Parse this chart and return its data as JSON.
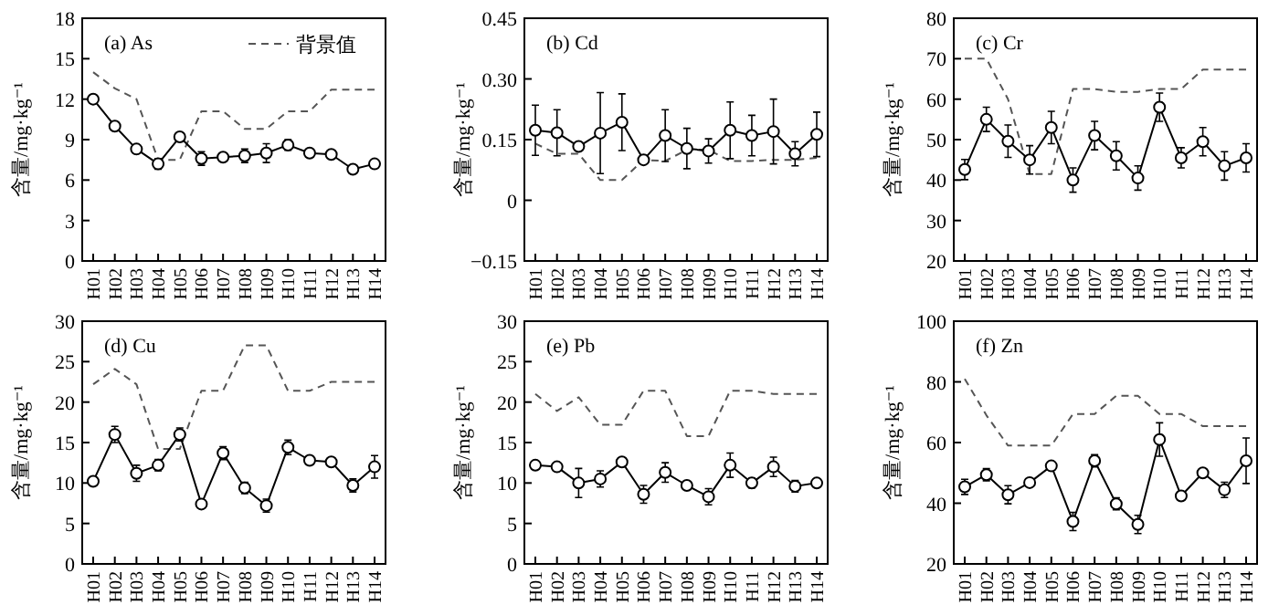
{
  "chart_data": [
    {
      "type": "line",
      "title": "(a) As",
      "ylabel": "含量/mg·kg⁻¹",
      "legend": "top right",
      "categories": [
        "H01",
        "H02",
        "H03",
        "H04",
        "H05",
        "H06",
        "H07",
        "H08",
        "H09",
        "H10",
        "H11",
        "H12",
        "H13",
        "H14"
      ],
      "ylim": [
        0,
        18
      ],
      "yticks": [
        0,
        3,
        6,
        9,
        12,
        15,
        18
      ],
      "series": [
        {
          "name": "背景值",
          "color": "#555555",
          "line_style": "dashed",
          "marker": "none",
          "values": [
            14,
            12.8,
            12,
            7.5,
            7.5,
            11.1,
            11.1,
            9.8,
            9.8,
            11.1,
            11.1,
            12.7,
            12.7,
            12.7
          ]
        },
        {
          "color": "#000000",
          "line_style": "solid",
          "marker": "circle",
          "values": [
            12,
            10,
            8.3,
            7.2,
            9.2,
            7.6,
            7.7,
            7.8,
            8,
            8.6,
            8,
            7.9,
            6.8,
            7.2
          ],
          "errors": [
            null,
            null,
            null,
            0.4,
            null,
            0.5,
            null,
            0.5,
            0.7,
            0.4,
            null,
            null,
            null,
            null
          ]
        }
      ]
    },
    {
      "type": "line",
      "title": "(b) Cd",
      "ylabel": "含量/mg·kg⁻¹",
      "categories": [
        "H01",
        "H02",
        "H03",
        "H04",
        "H05",
        "H06",
        "H07",
        "H08",
        "H09",
        "H10",
        "H11",
        "H12",
        "H13",
        "H14"
      ],
      "ylim": [
        -0.15,
        0.45
      ],
      "yticks": [
        {
          "value": -0.15,
          "label": "−0.15"
        },
        0,
        0.15,
        {
          "value": 0.3,
          "label": "0.30"
        },
        0.45
      ],
      "series": [
        {
          "color": "#555555",
          "line_style": "dashed",
          "marker": "none",
          "values": [
            0.14,
            0.115,
            0.115,
            0.05,
            0.05,
            0.1,
            0.097,
            0.125,
            0.125,
            0.097,
            0.097,
            0.1,
            0.1,
            0.105
          ]
        },
        {
          "color": "#000000",
          "line_style": "solid",
          "marker": "circle",
          "values": [
            0.173,
            0.167,
            0.133,
            0.166,
            0.193,
            0.1,
            0.16,
            0.128,
            0.122,
            0.173,
            0.16,
            0.17,
            0.115,
            0.163
          ],
          "errors": [
            0.062,
            0.057,
            0.005,
            0.1,
            0.07,
            0.005,
            0.064,
            0.05,
            0.03,
            0.07,
            0.05,
            0.08,
            0.03,
            0.055
          ]
        }
      ]
    },
    {
      "type": "line",
      "title": "(c) Cr",
      "ylabel": "含量/mg·kg⁻¹",
      "categories": [
        "H01",
        "H02",
        "H03",
        "H04",
        "H05",
        "H06",
        "H07",
        "H08",
        "H09",
        "H10",
        "H11",
        "H12",
        "H13",
        "H14"
      ],
      "ylim": [
        20,
        80
      ],
      "yticks": [
        20,
        30,
        40,
        50,
        60,
        70,
        80
      ],
      "series": [
        {
          "color": "#555555",
          "line_style": "dashed",
          "marker": "none",
          "values": [
            70,
            70,
            60,
            41.5,
            41.5,
            62.5,
            62.5,
            61.8,
            61.8,
            62.5,
            62.5,
            67.3,
            67.3,
            67.3
          ]
        },
        {
          "color": "#000000",
          "line_style": "solid",
          "marker": "circle",
          "values": [
            42.6,
            55,
            49.6,
            45,
            53,
            40,
            51,
            46,
            40.5,
            58,
            45.5,
            49.5,
            43.5,
            45.5
          ],
          "errors": [
            2.5,
            3,
            4,
            3.5,
            4,
            3,
            3.5,
            3.5,
            3,
            3.5,
            2.5,
            3.5,
            3.5,
            3.5
          ]
        }
      ]
    },
    {
      "type": "line",
      "title": "(d) Cu",
      "ylabel": "含量/mg·kg⁻¹",
      "categories": [
        "H01",
        "H02",
        "H03",
        "H04",
        "H05",
        "H06",
        "H07",
        "H08",
        "H09",
        "H10",
        "H11",
        "H12",
        "H13",
        "H14"
      ],
      "ylim": [
        0,
        30
      ],
      "yticks": [
        0,
        5,
        10,
        15,
        20,
        25,
        30
      ],
      "series": [
        {
          "color": "#555555",
          "line_style": "dashed",
          "marker": "none",
          "values": [
            22.2,
            24.1,
            22.2,
            14.2,
            14.2,
            21.4,
            21.4,
            27,
            27,
            21.4,
            21.4,
            22.5,
            22.5,
            22.5
          ]
        },
        {
          "color": "#000000",
          "line_style": "solid",
          "marker": "circle",
          "values": [
            10.2,
            16,
            11.2,
            12.2,
            16,
            7.4,
            13.7,
            9.4,
            7.2,
            14.4,
            12.8,
            12.6,
            9.7,
            12
          ],
          "errors": [
            null,
            1,
            1,
            0.7,
            0.8,
            null,
            0.8,
            0.7,
            0.8,
            0.9,
            null,
            null,
            0.8,
            1.4
          ]
        }
      ]
    },
    {
      "type": "line",
      "title": "(e) Pb",
      "ylabel": "含量/mg·kg⁻¹",
      "categories": [
        "H01",
        "H02",
        "H03",
        "H04",
        "H05",
        "H06",
        "H07",
        "H08",
        "H09",
        "H10",
        "H11",
        "H12",
        "H13",
        "H14"
      ],
      "ylim": [
        0,
        30
      ],
      "yticks": [
        0,
        5,
        10,
        15,
        20,
        25,
        30
      ],
      "series": [
        {
          "color": "#555555",
          "line_style": "dashed",
          "marker": "none",
          "values": [
            21,
            18.9,
            20.6,
            17.2,
            17.2,
            21.4,
            21.4,
            15.8,
            15.8,
            21.4,
            21.4,
            21,
            21,
            21
          ]
        },
        {
          "color": "#000000",
          "line_style": "solid",
          "marker": "circle",
          "values": [
            12.2,
            12,
            10,
            10.5,
            12.6,
            8.6,
            11.3,
            9.7,
            8.3,
            12.2,
            10,
            12,
            9.6,
            10
          ],
          "errors": [
            null,
            null,
            1.8,
            1,
            null,
            1.1,
            1.2,
            null,
            1,
            1.5,
            0.6,
            1.2,
            0.7,
            null
          ]
        }
      ]
    },
    {
      "type": "line",
      "title": "(f) Zn",
      "ylabel": "含量/mg·kg⁻¹",
      "categories": [
        "H01",
        "H02",
        "H03",
        "H04",
        "H05",
        "H06",
        "H07",
        "H08",
        "H09",
        "H10",
        "H11",
        "H12",
        "H13",
        "H14"
      ],
      "ylim": [
        20,
        100
      ],
      "yticks": [
        20,
        40,
        60,
        80,
        100
      ],
      "series": [
        {
          "color": "#555555",
          "line_style": "dashed",
          "marker": "none",
          "values": [
            81,
            69,
            59,
            59,
            59,
            69.4,
            69.4,
            75.4,
            75.4,
            69.4,
            69.4,
            65.4,
            65.4,
            65.4
          ]
        },
        {
          "color": "#000000",
          "line_style": "solid",
          "marker": "circle",
          "values": [
            45.4,
            49.4,
            42.8,
            46.8,
            52.3,
            34,
            54,
            39.8,
            33,
            61,
            42.4,
            50,
            44.4,
            54
          ],
          "errors": [
            2.5,
            2,
            3,
            null,
            null,
            3,
            2,
            2,
            3,
            5.5,
            null,
            null,
            2.5,
            7.5
          ]
        }
      ]
    }
  ]
}
